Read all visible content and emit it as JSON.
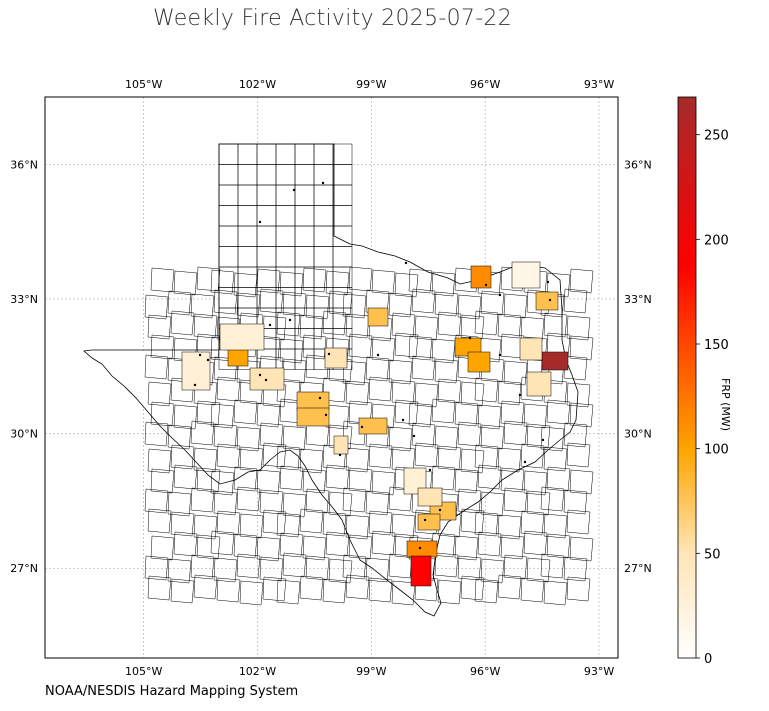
{
  "title": "Weekly Fire Activity 2025-07-22",
  "source": "NOAA/NESDIS Hazard Mapping System",
  "colorbar": {
    "label": "FRP (MW)",
    "ticks": [
      {
        "value": 0,
        "label": "0"
      },
      {
        "value": 50,
        "label": "50"
      },
      {
        "value": 100,
        "label": "100"
      },
      {
        "value": 150,
        "label": "150"
      },
      {
        "value": 200,
        "label": "200"
      },
      {
        "value": 250,
        "label": "250"
      }
    ],
    "max": 268,
    "colors": [
      "#ffffff",
      "#ffe4b5",
      "#ffa500",
      "#ff0000",
      "#a52a2a"
    ]
  },
  "map": {
    "lon_range": [
      -107.6,
      -92.5
    ],
    "lat_range": [
      25.0,
      37.5
    ],
    "lon_ticks": [
      {
        "value": -105,
        "label": "105°W"
      },
      {
        "value": -102,
        "label": "102°W"
      },
      {
        "value": -99,
        "label": "99°W"
      },
      {
        "value": -96,
        "label": "96°W"
      },
      {
        "value": -93,
        "label": "93°W"
      }
    ],
    "lat_ticks": [
      {
        "value": 27,
        "label": "27°N"
      },
      {
        "value": 30,
        "label": "30°N"
      },
      {
        "value": 33,
        "label": "33°N"
      },
      {
        "value": 36,
        "label": "36°N"
      }
    ],
    "grid": true
  }
}
